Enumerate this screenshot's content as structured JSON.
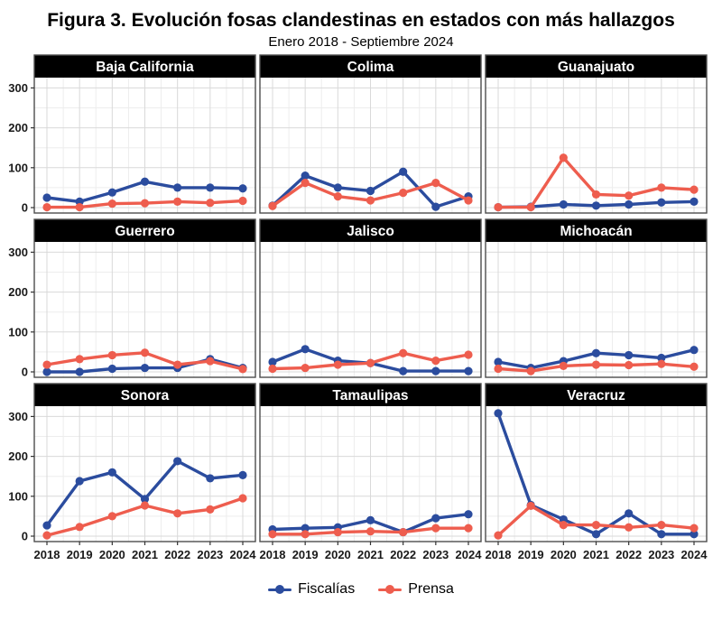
{
  "figure": {
    "title": "Figura 3. Evolución fosas clandestinas en estados con más hallazgos",
    "subtitle": "Enero 2018 - Septiembre 2024"
  },
  "legend": {
    "fiscalias_label": "Fiscalías",
    "prensa_label": "Prensa"
  },
  "colors": {
    "fiscalias": "#2B4C9E",
    "prensa": "#EE5D4E",
    "strip_bg": "#000000",
    "strip_text": "#ffffff",
    "panel_border": "#4d4d4d",
    "grid_major": "#d9d9d9",
    "grid_minor": "#ededed",
    "axis_text": "#1a1a1a"
  },
  "chart_data": {
    "type": "line",
    "title": "Figura 3. Evolución fosas clandestinas en estados con más hallazgos",
    "subtitle": "Enero 2018 - Septiembre 2024",
    "x": [
      "2018",
      "2019",
      "2020",
      "2021",
      "2022",
      "2023",
      "2024"
    ],
    "ylim": [
      0,
      310
    ],
    "yticks": [
      0,
      100,
      200,
      300
    ],
    "yticks_minor": [
      50,
      150,
      250
    ],
    "grid": true,
    "legend_position": "bottom",
    "series_meta": [
      {
        "key": "fiscalias",
        "name": "Fiscalías",
        "color": "#2B4C9E"
      },
      {
        "key": "prensa",
        "name": "Prensa",
        "color": "#EE5D4E"
      }
    ],
    "facets": [
      {
        "title": "Baja California",
        "fiscalias": [
          25,
          15,
          38,
          65,
          50,
          50,
          48
        ],
        "prensa": [
          1,
          1,
          10,
          11,
          15,
          12,
          17
        ]
      },
      {
        "title": "Colima",
        "fiscalias": [
          5,
          80,
          50,
          42,
          90,
          2,
          28
        ],
        "prensa": [
          4,
          62,
          28,
          18,
          37,
          62,
          18
        ]
      },
      {
        "title": "Guanajuato",
        "fiscalias": [
          1,
          2,
          8,
          5,
          8,
          13,
          15
        ],
        "prensa": [
          1,
          1,
          125,
          33,
          30,
          50,
          45
        ]
      },
      {
        "title": "Guerrero",
        "fiscalias": [
          0,
          0,
          8,
          10,
          10,
          32,
          10
        ],
        "prensa": [
          18,
          32,
          42,
          48,
          18,
          27,
          7
        ]
      },
      {
        "title": "Jalisco",
        "fiscalias": [
          25,
          57,
          28,
          22,
          2,
          2,
          2
        ],
        "prensa": [
          8,
          10,
          18,
          22,
          47,
          28,
          43
        ]
      },
      {
        "title": "Michoacán",
        "fiscalias": [
          25,
          10,
          27,
          47,
          42,
          35,
          55
        ],
        "prensa": [
          8,
          2,
          15,
          18,
          17,
          20,
          13
        ]
      },
      {
        "title": "Sonora",
        "fiscalias": [
          27,
          138,
          160,
          93,
          188,
          145,
          153
        ],
        "prensa": [
          2,
          23,
          50,
          77,
          57,
          67,
          95
        ]
      },
      {
        "title": "Tamaulipas",
        "fiscalias": [
          17,
          20,
          22,
          40,
          10,
          45,
          55
        ],
        "prensa": [
          5,
          5,
          10,
          12,
          10,
          20,
          20
        ]
      },
      {
        "title": "Veracruz",
        "fiscalias": [
          308,
          78,
          42,
          5,
          57,
          5,
          5
        ],
        "prensa": [
          2,
          76,
          28,
          28,
          22,
          28,
          20
        ]
      }
    ]
  }
}
